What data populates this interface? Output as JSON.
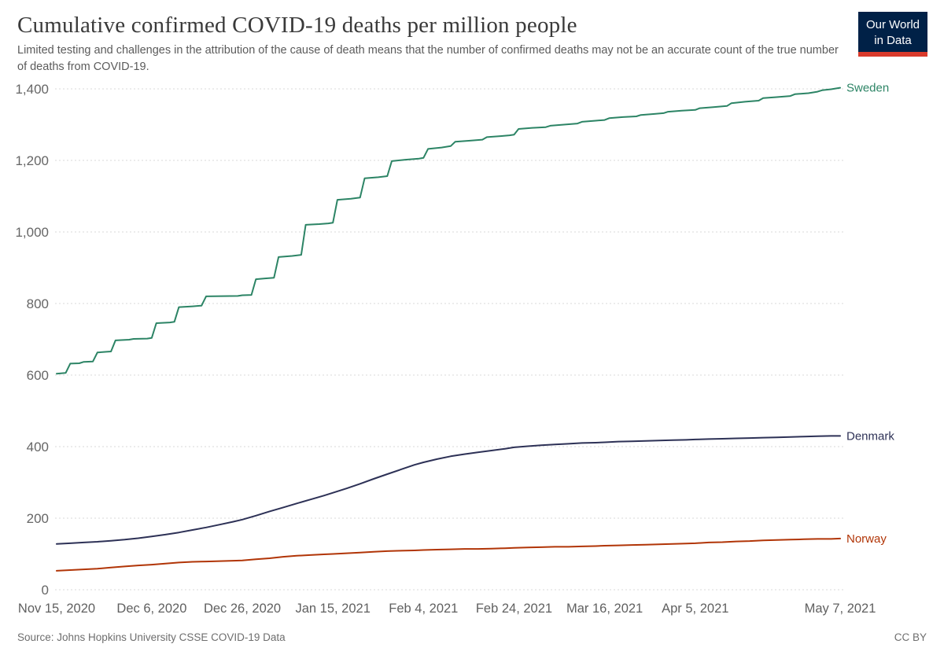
{
  "header": {
    "title": "Cumulative confirmed COVID-19 deaths per million people",
    "subtitle": "Limited testing and challenges in the attribution of the cause of death means that the number of confirmed deaths may not be an accurate count of the true number of deaths from COVID-19.",
    "logo": {
      "line1": "Our World",
      "line2": "in Data",
      "bg_color": "#002147",
      "accent_color": "#d93a2b"
    }
  },
  "footer": {
    "source": "Source: Johns Hopkins University CSSE COVID-19 Data",
    "license": "CC BY"
  },
  "chart_data": {
    "type": "line",
    "title": "Cumulative confirmed COVID-19 deaths per million people",
    "subtitle": "Limited testing and challenges in the attribution of the cause of death means that the number of confirmed deaths may not be an accurate count of the true number of deaths from COVID-19.",
    "grid": true,
    "legend_position": "line-end-labels",
    "y_axis": {
      "min": 0,
      "max": 1400,
      "ticks": [
        0,
        200,
        400,
        600,
        800,
        1000,
        1200,
        1400
      ]
    },
    "x_axis": {
      "unit": "date",
      "start": "Nov 15, 2020",
      "end": "May 7, 2021",
      "total_days": 173,
      "ticks": [
        {
          "label": "Nov 15, 2020",
          "day": 0
        },
        {
          "label": "Dec 6, 2020",
          "day": 21
        },
        {
          "label": "Dec 26, 2020",
          "day": 41
        },
        {
          "label": "Jan 15, 2021",
          "day": 61
        },
        {
          "label": "Feb 4, 2021",
          "day": 81
        },
        {
          "label": "Feb 24, 2021",
          "day": 101
        },
        {
          "label": "Mar 16, 2021",
          "day": 121
        },
        {
          "label": "Apr 5, 2021",
          "day": 141
        },
        {
          "label": "May 7, 2021",
          "day": 173
        }
      ]
    },
    "series": [
      {
        "name": "Sweden",
        "color": "#2c8465",
        "points": [
          [
            0,
            604
          ],
          [
            2,
            606
          ],
          [
            3,
            632
          ],
          [
            5,
            633
          ],
          [
            6,
            637
          ],
          [
            8,
            638
          ],
          [
            9,
            663
          ],
          [
            11,
            665
          ],
          [
            12,
            666
          ],
          [
            13,
            697
          ],
          [
            16,
            699
          ],
          [
            17,
            701
          ],
          [
            20,
            702
          ],
          [
            21,
            704
          ],
          [
            22,
            745
          ],
          [
            25,
            747
          ],
          [
            26,
            749
          ],
          [
            27,
            790
          ],
          [
            30,
            792
          ],
          [
            32,
            794
          ],
          [
            33,
            820
          ],
          [
            40,
            821
          ],
          [
            41,
            823
          ],
          [
            43,
            824
          ],
          [
            44,
            868
          ],
          [
            46,
            870
          ],
          [
            48,
            872
          ],
          [
            49,
            930
          ],
          [
            52,
            933
          ],
          [
            54,
            936
          ],
          [
            55,
            1020
          ],
          [
            58,
            1022
          ],
          [
            60,
            1024
          ],
          [
            61,
            1026
          ],
          [
            62,
            1090
          ],
          [
            65,
            1093
          ],
          [
            67,
            1096
          ],
          [
            68,
            1150
          ],
          [
            71,
            1153
          ],
          [
            73,
            1156
          ],
          [
            74,
            1198
          ],
          [
            77,
            1202
          ],
          [
            80,
            1205
          ],
          [
            81,
            1207
          ],
          [
            82,
            1232
          ],
          [
            85,
            1236
          ],
          [
            87,
            1240
          ],
          [
            88,
            1252
          ],
          [
            91,
            1255
          ],
          [
            94,
            1258
          ],
          [
            95,
            1265
          ],
          [
            98,
            1268
          ],
          [
            100,
            1270
          ],
          [
            101,
            1272
          ],
          [
            102,
            1288
          ],
          [
            105,
            1291
          ],
          [
            108,
            1293
          ],
          [
            109,
            1297
          ],
          [
            112,
            1300
          ],
          [
            115,
            1303
          ],
          [
            116,
            1308
          ],
          [
            119,
            1311
          ],
          [
            121,
            1313
          ],
          [
            122,
            1318
          ],
          [
            125,
            1321
          ],
          [
            128,
            1323
          ],
          [
            129,
            1327
          ],
          [
            132,
            1330
          ],
          [
            134,
            1332
          ],
          [
            135,
            1336
          ],
          [
            138,
            1339
          ],
          [
            141,
            1341
          ],
          [
            142,
            1346
          ],
          [
            145,
            1349
          ],
          [
            148,
            1352
          ],
          [
            149,
            1360
          ],
          [
            152,
            1364
          ],
          [
            155,
            1367
          ],
          [
            156,
            1374
          ],
          [
            159,
            1377
          ],
          [
            162,
            1380
          ],
          [
            163,
            1385
          ],
          [
            166,
            1388
          ],
          [
            168,
            1392
          ],
          [
            169,
            1396
          ],
          [
            171,
            1399
          ],
          [
            173,
            1403
          ]
        ]
      },
      {
        "name": "Denmark",
        "color": "#2d3156",
        "points": [
          [
            0,
            128
          ],
          [
            3,
            130
          ],
          [
            6,
            132
          ],
          [
            9,
            134
          ],
          [
            12,
            137
          ],
          [
            15,
            140
          ],
          [
            18,
            144
          ],
          [
            21,
            149
          ],
          [
            24,
            154
          ],
          [
            27,
            160
          ],
          [
            30,
            167
          ],
          [
            33,
            174
          ],
          [
            36,
            182
          ],
          [
            39,
            190
          ],
          [
            41,
            196
          ],
          [
            44,
            207
          ],
          [
            47,
            219
          ],
          [
            50,
            230
          ],
          [
            53,
            241
          ],
          [
            56,
            252
          ],
          [
            59,
            263
          ],
          [
            61,
            271
          ],
          [
            64,
            283
          ],
          [
            67,
            296
          ],
          [
            70,
            310
          ],
          [
            73,
            323
          ],
          [
            76,
            336
          ],
          [
            79,
            349
          ],
          [
            81,
            356
          ],
          [
            84,
            365
          ],
          [
            87,
            373
          ],
          [
            90,
            379
          ],
          [
            93,
            384
          ],
          [
            96,
            389
          ],
          [
            99,
            394
          ],
          [
            101,
            398
          ],
          [
            104,
            401
          ],
          [
            107,
            404
          ],
          [
            110,
            406
          ],
          [
            113,
            408
          ],
          [
            116,
            410
          ],
          [
            119,
            411
          ],
          [
            121,
            412
          ],
          [
            124,
            414
          ],
          [
            127,
            415
          ],
          [
            130,
            416
          ],
          [
            133,
            417
          ],
          [
            136,
            418
          ],
          [
            139,
            419
          ],
          [
            141,
            420
          ],
          [
            144,
            421
          ],
          [
            147,
            422
          ],
          [
            150,
            423
          ],
          [
            153,
            424
          ],
          [
            156,
            425
          ],
          [
            159,
            426
          ],
          [
            162,
            427
          ],
          [
            165,
            428
          ],
          [
            168,
            429
          ],
          [
            171,
            430
          ],
          [
            173,
            430
          ]
        ]
      },
      {
        "name": "Norway",
        "color": "#b13507",
        "points": [
          [
            0,
            53
          ],
          [
            3,
            55
          ],
          [
            6,
            57
          ],
          [
            9,
            59
          ],
          [
            12,
            62
          ],
          [
            15,
            65
          ],
          [
            18,
            68
          ],
          [
            21,
            70
          ],
          [
            24,
            73
          ],
          [
            27,
            76
          ],
          [
            30,
            78
          ],
          [
            33,
            79
          ],
          [
            36,
            80
          ],
          [
            39,
            81
          ],
          [
            41,
            82
          ],
          [
            44,
            85
          ],
          [
            47,
            88
          ],
          [
            50,
            92
          ],
          [
            53,
            95
          ],
          [
            56,
            97
          ],
          [
            59,
            99
          ],
          [
            61,
            100
          ],
          [
            64,
            102
          ],
          [
            67,
            104
          ],
          [
            70,
            106
          ],
          [
            73,
            108
          ],
          [
            76,
            109
          ],
          [
            79,
            110
          ],
          [
            81,
            111
          ],
          [
            84,
            112
          ],
          [
            87,
            113
          ],
          [
            90,
            114
          ],
          [
            93,
            114
          ],
          [
            96,
            115
          ],
          [
            99,
            116
          ],
          [
            101,
            117
          ],
          [
            104,
            118
          ],
          [
            107,
            119
          ],
          [
            110,
            120
          ],
          [
            113,
            120
          ],
          [
            116,
            121
          ],
          [
            119,
            122
          ],
          [
            121,
            123
          ],
          [
            124,
            124
          ],
          [
            127,
            125
          ],
          [
            130,
            126
          ],
          [
            133,
            127
          ],
          [
            136,
            128
          ],
          [
            139,
            129
          ],
          [
            141,
            130
          ],
          [
            144,
            132
          ],
          [
            147,
            133
          ],
          [
            150,
            135
          ],
          [
            153,
            136
          ],
          [
            156,
            138
          ],
          [
            159,
            139
          ],
          [
            162,
            140
          ],
          [
            165,
            141
          ],
          [
            168,
            142
          ],
          [
            171,
            142
          ],
          [
            173,
            143
          ]
        ]
      }
    ]
  }
}
